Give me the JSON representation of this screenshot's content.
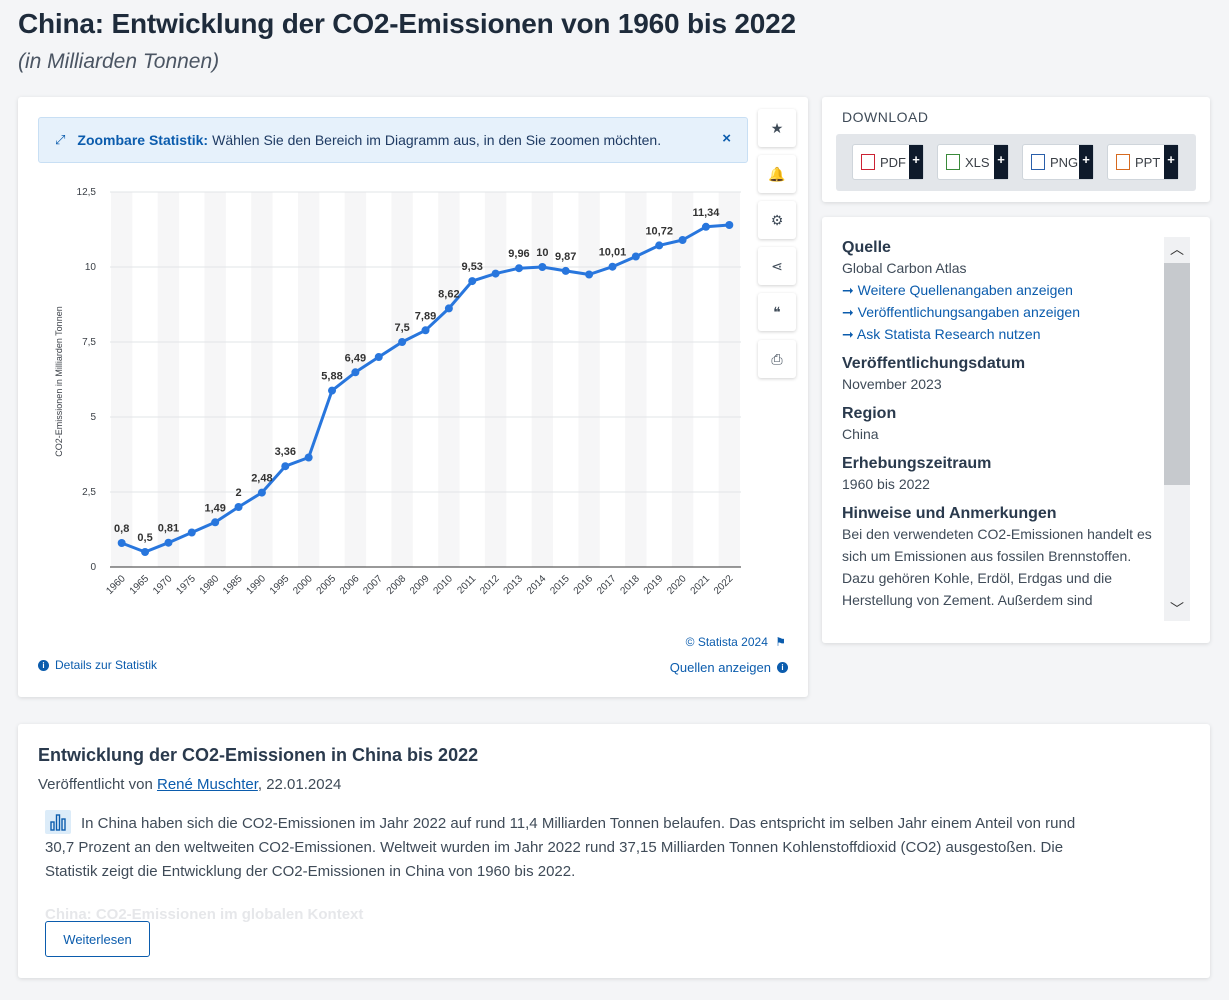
{
  "page": {
    "title": "China: Entwicklung der CO2-Emissionen von 1960 bis 2022",
    "subtitle": "(in Milliarden Tonnen)"
  },
  "zoom_banner": {
    "label": "Zoombare Statistik:",
    "text": "Wählen Sie den Bereich im Diagramm aus, in den Sie zoomen möchten.",
    "close": "×"
  },
  "tools": [
    {
      "name": "favorite-button",
      "icon": "star-icon",
      "glyph": "★"
    },
    {
      "name": "notification-button",
      "icon": "bell-icon",
      "glyph": "🔔"
    },
    {
      "name": "settings-button",
      "icon": "gear-icon",
      "glyph": "⚙"
    },
    {
      "name": "share-button",
      "icon": "share-icon",
      "glyph": "⋖"
    },
    {
      "name": "cite-button",
      "icon": "quote-icon",
      "glyph": "❝"
    },
    {
      "name": "print-button",
      "icon": "printer-icon",
      "glyph": "⎙"
    }
  ],
  "chart_data": {
    "type": "line",
    "ylabel": "CO2-Emissionen in Milliarden Tonnen",
    "ylim": [
      0,
      12.5
    ],
    "yticks": [
      "0",
      "2,5",
      "5",
      "7,5",
      "10",
      "12,5"
    ],
    "ytick_values": [
      0,
      2.5,
      5,
      7.5,
      10,
      12.5
    ],
    "grid": true,
    "color": "#2876dd",
    "x": [
      "1960",
      "1965",
      "1970",
      "1975",
      "1980",
      "1985",
      "1990",
      "1995",
      "2000",
      "2005",
      "2006",
      "2007",
      "2008",
      "2009",
      "2010",
      "2011",
      "2012",
      "2013",
      "2014",
      "2015",
      "2016",
      "2017",
      "2018",
      "2019",
      "2020",
      "2021",
      "2022"
    ],
    "values": [
      0.8,
      0.5,
      0.81,
      1.15,
      1.49,
      2.0,
      2.48,
      3.36,
      3.65,
      5.88,
      6.49,
      7.0,
      7.5,
      7.89,
      8.62,
      9.53,
      9.78,
      9.96,
      10.0,
      9.87,
      9.75,
      10.01,
      10.35,
      10.72,
      10.9,
      11.34,
      11.4
    ],
    "data_labels": [
      "0,8",
      "0,5",
      "0,81",
      "",
      "1,49",
      "2",
      "2,48",
      "3,36",
      "",
      "5,88",
      "6,49",
      "",
      "7,5",
      "7,89",
      "8,62",
      "9,53",
      "",
      "9,96",
      "10",
      "9,87",
      "",
      "10,01",
      "",
      "10,72",
      "",
      "11,34",
      ""
    ]
  },
  "footer": {
    "copyright": "© Statista 2024",
    "details": "Details zur Statistik",
    "sources": "Quellen anzeigen"
  },
  "download": {
    "title": "DOWNLOAD",
    "buttons": [
      "PDF",
      "XLS",
      "PNG",
      "PPT"
    ],
    "plus": "+"
  },
  "source_panel": {
    "quelle_h": "Quelle",
    "quelle": "Global Carbon Atlas",
    "links": [
      "Weitere Quellenangaben anzeigen",
      "Veröffentlichungsangaben anzeigen",
      "Ask Statista Research nutzen"
    ],
    "date_h": "Veröffentlichungsdatum",
    "date": "November 2023",
    "region_h": "Region",
    "region": "China",
    "period_h": "Erhebungszeitraum",
    "period": "1960 bis 2022",
    "notes_h": "Hinweise und Anmerkungen",
    "notes": "Bei den verwendeten CO2-Emissionen handelt es sich um Emissionen aus fossilen Brennstoffen. Dazu gehören Kohle, Erdöl, Erdgas und die Herstellung von Zement. Außerdem sind"
  },
  "article": {
    "title": "Entwicklung der CO2-Emissionen in China bis 2022",
    "meta_prefix": "Veröffentlicht von",
    "author": "René Muschter",
    "meta_date": ", 22.01.2024",
    "body": "In China haben sich die CO2-Emissionen im Jahr 2022 auf rund 11,4 Milliarden Tonnen belaufen. Das entspricht im selben Jahr einem Anteil von rund 30,7 Prozent an den weltweiten CO2-Emissionen. Weltweit wurden im Jahr 2022 rund 37,15 Milliarden Tonnen Kohlenstoffdioxid (CO2) ausgestoßen. Die Statistik zeigt die Entwicklung der CO2-Emissionen in China von 1960 bis 2022.",
    "faded_heading": "China: CO2-Emissionen im globalen Kontext",
    "more": "Weiterlesen"
  }
}
